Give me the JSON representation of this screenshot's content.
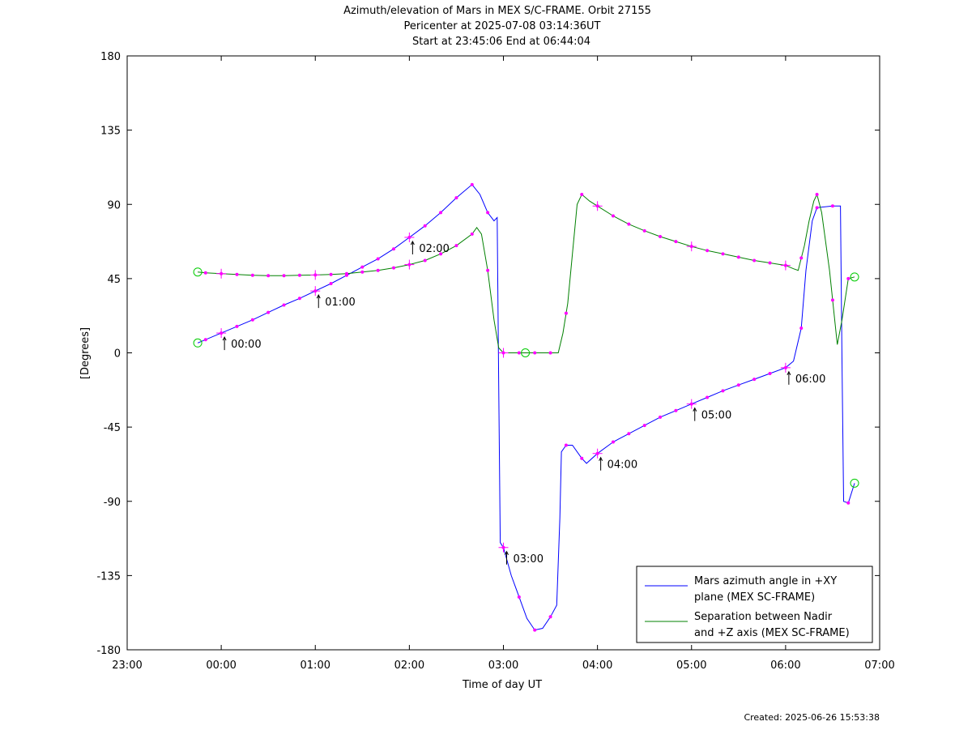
{
  "chart_data": {
    "type": "line",
    "title": "Azimuth/elevation of Mars in MEX S/C-FRAME.  Orbit 27155",
    "subtitle_1": "Pericenter at 2025-07-08 03:14:36UT",
    "subtitle_2": "Start at 23:45:06 End at 06:44:04",
    "xlabel": "Time of day UT",
    "ylabel": "[Degrees]",
    "xlim": [
      "23:00",
      "07:00"
    ],
    "ylim": [
      -180,
      180
    ],
    "x_ticks": [
      "23:00",
      "00:00",
      "01:00",
      "02:00",
      "03:00",
      "04:00",
      "05:00",
      "06:00",
      "07:00"
    ],
    "y_ticks": [
      180,
      135,
      90,
      45,
      0,
      -45,
      -90,
      -135,
      -180
    ],
    "grid": false,
    "legend_position": "bottom-right",
    "series": [
      {
        "name_line1": "Mars azimuth angle in +XY",
        "name_line2": "plane (MEX SC-FRAME)",
        "color": "#0000ff",
        "points": [
          [
            "23:45",
            6
          ],
          [
            "23:50",
            8
          ],
          [
            "00:00",
            12
          ],
          [
            "00:10",
            16
          ],
          [
            "00:20",
            20
          ],
          [
            "00:30",
            24.5
          ],
          [
            "00:40",
            29
          ],
          [
            "00:50",
            33
          ],
          [
            "01:00",
            37.5
          ],
          [
            "01:10",
            42
          ],
          [
            "01:20",
            47
          ],
          [
            "01:30",
            52
          ],
          [
            "01:40",
            57
          ],
          [
            "01:50",
            63
          ],
          [
            "02:00",
            70
          ],
          [
            "02:10",
            77
          ],
          [
            "02:20",
            85
          ],
          [
            "02:30",
            94
          ],
          [
            "02:40",
            102
          ],
          [
            "02:45",
            96
          ],
          [
            "02:50",
            85
          ],
          [
            "02:54",
            80
          ],
          [
            "02:56",
            82
          ],
          [
            "02:57",
            -20
          ],
          [
            "02:58",
            -115
          ],
          [
            "03:00",
            -118
          ],
          [
            "03:05",
            -135
          ],
          [
            "03:10",
            -148
          ],
          [
            "03:15",
            -161
          ],
          [
            "03:20",
            -168
          ],
          [
            "03:25",
            -167
          ],
          [
            "03:30",
            -160
          ],
          [
            "03:34",
            -153
          ],
          [
            "03:36",
            -100
          ],
          [
            "03:37",
            -60
          ],
          [
            "03:40",
            -56
          ],
          [
            "03:44",
            -56
          ],
          [
            "03:50",
            -64
          ],
          [
            "03:53",
            -67
          ],
          [
            "04:00",
            -61
          ],
          [
            "04:10",
            -54
          ],
          [
            "04:20",
            -49
          ],
          [
            "04:30",
            -44
          ],
          [
            "04:40",
            -39
          ],
          [
            "04:50",
            -35
          ],
          [
            "05:00",
            -31
          ],
          [
            "05:10",
            -27
          ],
          [
            "05:20",
            -23
          ],
          [
            "05:30",
            -19.5
          ],
          [
            "05:40",
            -16
          ],
          [
            "05:50",
            -12.5
          ],
          [
            "06:00",
            -9
          ],
          [
            "06:05",
            -5
          ],
          [
            "06:10",
            15
          ],
          [
            "06:13",
            50
          ],
          [
            "06:17",
            80
          ],
          [
            "06:20",
            88
          ],
          [
            "06:30",
            89
          ],
          [
            "06:35",
            89
          ],
          [
            "06:36",
            -5
          ],
          [
            "06:37",
            -90
          ],
          [
            "06:40",
            -91
          ],
          [
            "06:44",
            -79
          ]
        ]
      },
      {
        "name_line1": "Separation between Nadir",
        "name_line2": "and +Z axis (MEX SC-FRAME)",
        "color": "#008000",
        "points": [
          [
            "23:45",
            49
          ],
          [
            "23:50",
            48.5
          ],
          [
            "00:00",
            48
          ],
          [
            "00:10",
            47.5
          ],
          [
            "00:20",
            47
          ],
          [
            "00:30",
            46.8
          ],
          [
            "00:40",
            46.8
          ],
          [
            "00:50",
            47
          ],
          [
            "01:00",
            47.2
          ],
          [
            "01:10",
            47.5
          ],
          [
            "01:20",
            48
          ],
          [
            "01:30",
            49
          ],
          [
            "01:40",
            50
          ],
          [
            "01:50",
            51.5
          ],
          [
            "02:00",
            53.5
          ],
          [
            "02:10",
            56
          ],
          [
            "02:20",
            60
          ],
          [
            "02:30",
            65
          ],
          [
            "02:40",
            72
          ],
          [
            "02:43",
            76
          ],
          [
            "02:46",
            72
          ],
          [
            "02:50",
            50
          ],
          [
            "02:54",
            20
          ],
          [
            "02:57",
            3
          ],
          [
            "03:00",
            0
          ],
          [
            "03:10",
            0
          ],
          [
            "03:20",
            0
          ],
          [
            "03:30",
            0
          ],
          [
            "03:35",
            0
          ],
          [
            "03:38",
            12
          ],
          [
            "03:41",
            30
          ],
          [
            "03:44",
            60
          ],
          [
            "03:47",
            90
          ],
          [
            "03:50",
            96
          ],
          [
            "03:55",
            92
          ],
          [
            "04:00",
            89
          ],
          [
            "04:10",
            83
          ],
          [
            "04:20",
            78
          ],
          [
            "04:30",
            74
          ],
          [
            "04:40",
            70.5
          ],
          [
            "04:50",
            67.5
          ],
          [
            "05:00",
            64.5
          ],
          [
            "05:10",
            62
          ],
          [
            "05:20",
            60
          ],
          [
            "05:30",
            58
          ],
          [
            "05:40",
            56
          ],
          [
            "05:50",
            54.5
          ],
          [
            "06:00",
            53
          ],
          [
            "06:05",
            51
          ],
          [
            "06:08",
            50
          ],
          [
            "06:12",
            65
          ],
          [
            "06:15",
            80
          ],
          [
            "06:18",
            92
          ],
          [
            "06:20",
            96
          ],
          [
            "06:23",
            85
          ],
          [
            "06:28",
            50
          ],
          [
            "06:33",
            5
          ],
          [
            "06:36",
            20
          ],
          [
            "06:40",
            45
          ],
          [
            "06:44",
            46
          ]
        ]
      }
    ],
    "markers": {
      "dots_every_minutes": 10,
      "hour_crosses": [
        "00:00",
        "01:00",
        "02:00",
        "03:00",
        "04:00",
        "05:00",
        "06:00"
      ],
      "pericenter_and_endpoints_circles": [
        "23:45",
        "03:14",
        "06:44"
      ]
    },
    "hour_annotations": [
      {
        "label": "00:00",
        "time": "00:00",
        "value": 12
      },
      {
        "label": "01:00",
        "time": "01:00",
        "value": 37.5
      },
      {
        "label": "02:00",
        "time": "02:00",
        "value": 70
      },
      {
        "label": "03:00",
        "time": "03:00",
        "value": -118
      },
      {
        "label": "04:00",
        "time": "04:00",
        "value": -61
      },
      {
        "label": "05:00",
        "time": "05:00",
        "value": -31
      },
      {
        "label": "06:00",
        "time": "06:00",
        "value": -9
      }
    ],
    "footer": "Created: 2025-06-26 15:53:38"
  }
}
